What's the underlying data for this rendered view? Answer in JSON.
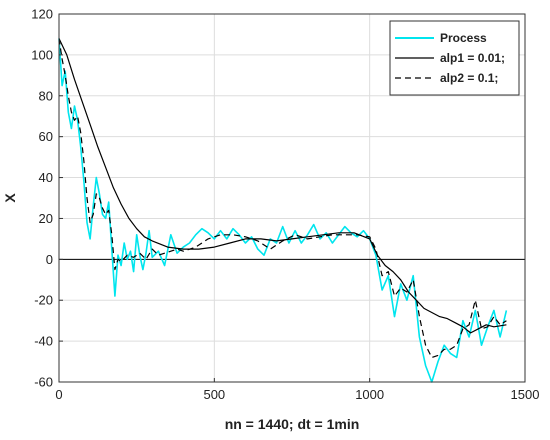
{
  "chart_data": {
    "type": "line",
    "title": "",
    "xlabel": "nn = 1440;  dt = 1min",
    "ylabel": "X",
    "xlim": [
      0,
      1500
    ],
    "ylim": [
      -60,
      120
    ],
    "xticks": [
      0,
      500,
      1000,
      1500
    ],
    "yticks": [
      -60,
      -40,
      -20,
      0,
      20,
      40,
      60,
      80,
      100,
      120
    ],
    "grid": true,
    "legend_position": "top-right",
    "reference_line": {
      "y": 0,
      "color": "#000000"
    },
    "series": [
      {
        "name": "Process",
        "color": "#00e5ee",
        "style": "solid",
        "x": [
          0,
          10,
          20,
          30,
          40,
          50,
          60,
          70,
          80,
          90,
          100,
          110,
          120,
          130,
          140,
          150,
          160,
          170,
          180,
          190,
          200,
          210,
          220,
          230,
          240,
          250,
          260,
          270,
          280,
          290,
          300,
          320,
          340,
          360,
          380,
          400,
          420,
          440,
          460,
          480,
          500,
          520,
          540,
          560,
          580,
          600,
          620,
          640,
          660,
          680,
          700,
          720,
          740,
          760,
          780,
          800,
          820,
          840,
          860,
          880,
          900,
          920,
          940,
          960,
          980,
          1000,
          1020,
          1040,
          1060,
          1080,
          1100,
          1120,
          1140,
          1160,
          1180,
          1200,
          1220,
          1240,
          1260,
          1280,
          1300,
          1320,
          1340,
          1360,
          1380,
          1400,
          1420,
          1440
        ],
        "values": [
          108,
          85,
          92,
          72,
          64,
          75,
          68,
          55,
          38,
          18,
          10,
          26,
          40,
          32,
          22,
          20,
          28,
          5,
          -18,
          2,
          -3,
          8,
          0,
          4,
          -6,
          12,
          2,
          -5,
          3,
          14,
          1,
          4,
          -3,
          12,
          3,
          6,
          8,
          12,
          15,
          13,
          10,
          14,
          10,
          15,
          12,
          8,
          11,
          5,
          2,
          10,
          8,
          16,
          8,
          14,
          8,
          12,
          17,
          10,
          13,
          8,
          12,
          16,
          13,
          11,
          14,
          10,
          2,
          -15,
          -8,
          -28,
          -12,
          -20,
          -8,
          -38,
          -52,
          -60,
          -50,
          -42,
          -46,
          -48,
          -30,
          -38,
          -25,
          -42,
          -33,
          -25,
          -38,
          -25
        ]
      },
      {
        "name": "alp1 = 0.01;",
        "color": "#000000",
        "style": "solid",
        "x": [
          0,
          25,
          50,
          75,
          100,
          125,
          150,
          175,
          200,
          225,
          250,
          275,
          300,
          350,
          400,
          450,
          500,
          550,
          600,
          650,
          700,
          750,
          800,
          850,
          900,
          950,
          1000,
          1025,
          1050,
          1075,
          1100,
          1125,
          1150,
          1175,
          1200,
          1225,
          1250,
          1275,
          1300,
          1325,
          1350,
          1375,
          1400,
          1440
        ],
        "values": [
          108,
          100,
          88,
          77,
          66,
          55,
          45,
          35,
          27,
          20,
          15,
          11,
          9,
          6,
          5,
          5,
          6,
          8,
          10,
          10,
          9,
          10,
          11,
          12,
          13,
          13,
          10,
          2,
          -3,
          -6,
          -10,
          -16,
          -20,
          -24,
          -26,
          -28,
          -29,
          -31,
          -33,
          -36,
          -34,
          -32,
          -33,
          -32
        ]
      },
      {
        "name": "alp2 = 0.1;",
        "color": "#000000",
        "style": "dashed",
        "x": [
          0,
          10,
          20,
          30,
          40,
          50,
          60,
          70,
          80,
          90,
          100,
          110,
          120,
          130,
          140,
          150,
          160,
          170,
          180,
          190,
          200,
          220,
          240,
          260,
          280,
          300,
          320,
          340,
          360,
          380,
          400,
          440,
          480,
          520,
          560,
          600,
          640,
          680,
          720,
          760,
          800,
          840,
          880,
          920,
          960,
          1000,
          1020,
          1040,
          1060,
          1080,
          1100,
          1120,
          1140,
          1160,
          1180,
          1200,
          1220,
          1240,
          1260,
          1280,
          1300,
          1320,
          1340,
          1360,
          1380,
          1400,
          1420,
          1440
        ],
        "values": [
          108,
          98,
          90,
          80,
          72,
          68,
          70,
          62,
          48,
          30,
          18,
          22,
          32,
          30,
          25,
          22,
          24,
          12,
          -5,
          0,
          -1,
          2,
          1,
          3,
          0,
          5,
          2,
          3,
          4,
          5,
          4,
          6,
          10,
          12,
          12,
          11,
          9,
          5,
          9,
          12,
          10,
          11,
          12,
          12,
          12,
          11,
          5,
          -8,
          -6,
          -18,
          -14,
          -16,
          -10,
          -28,
          -42,
          -48,
          -47,
          -44,
          -44,
          -42,
          -34,
          -32,
          -20,
          -34,
          -33,
          -28,
          -32,
          -30
        ]
      }
    ]
  }
}
